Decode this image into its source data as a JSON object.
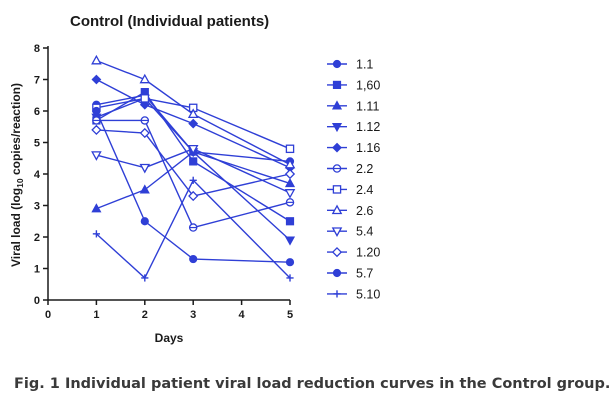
{
  "caption": "Fig. 1 Individual patient viral load reduction curves in the Control group.",
  "colors": {
    "series": "#2f3fd6",
    "axis": "#1a1a1a"
  },
  "chart_data": {
    "type": "line",
    "title": "Control (Individual patients)",
    "xlabel": "Days",
    "ylabel_main": "Viral load (log",
    "ylabel_sub": "10",
    "ylabel_tail": " copies/reaction)",
    "xlim": [
      0,
      5
    ],
    "ylim": [
      0,
      8
    ],
    "x_ticks": [
      0,
      1,
      2,
      3,
      4,
      5
    ],
    "y_ticks": [
      0,
      1,
      2,
      3,
      4,
      5,
      6,
      7,
      8
    ],
    "grid": false,
    "legend_position": "right",
    "series": [
      {
        "name": "1.1",
        "marker": "circle-filled",
        "points": [
          [
            1,
            6.2
          ],
          [
            2,
            6.5
          ],
          [
            3,
            4.7
          ],
          [
            5,
            4.4
          ]
        ]
      },
      {
        "name": "1,60",
        "marker": "square-filled",
        "points": [
          [
            1,
            5.7
          ],
          [
            2,
            6.6
          ],
          [
            3,
            4.4
          ],
          [
            5,
            2.5
          ]
        ]
      },
      {
        "name": "1.11",
        "marker": "triangle-up-filled",
        "points": [
          [
            1,
            2.9
          ],
          [
            2,
            3.5
          ],
          [
            3,
            4.7
          ],
          [
            5,
            3.7
          ]
        ]
      },
      {
        "name": "1.12",
        "marker": "triangle-down-filled",
        "points": [
          [
            1,
            5.8
          ],
          [
            2,
            6.4
          ],
          [
            3,
            4.7
          ],
          [
            5,
            1.9
          ]
        ]
      },
      {
        "name": "1.16",
        "marker": "diamond-filled",
        "points": [
          [
            1,
            7.0
          ],
          [
            2,
            6.2
          ],
          [
            3,
            5.6
          ],
          [
            5,
            4.2
          ]
        ]
      },
      {
        "name": "2.2",
        "marker": "circle-open-bar",
        "points": [
          [
            1,
            5.7
          ],
          [
            2,
            5.7
          ],
          [
            3,
            2.3
          ],
          [
            5,
            3.1
          ]
        ]
      },
      {
        "name": "2.4",
        "marker": "square-open",
        "points": [
          [
            1,
            6.1
          ],
          [
            2,
            6.4
          ],
          [
            3,
            6.1
          ],
          [
            5,
            4.8
          ]
        ]
      },
      {
        "name": "2.6",
        "marker": "triangle-up-open",
        "points": [
          [
            1,
            7.6
          ],
          [
            2,
            7.0
          ],
          [
            3,
            5.9
          ],
          [
            5,
            4.3
          ]
        ]
      },
      {
        "name": "5.4",
        "marker": "triangle-down-open",
        "points": [
          [
            1,
            4.6
          ],
          [
            2,
            4.2
          ],
          [
            3,
            4.8
          ],
          [
            5,
            3.4
          ]
        ]
      },
      {
        "name": "1.20",
        "marker": "diamond-open",
        "points": [
          [
            1,
            5.4
          ],
          [
            2,
            5.3
          ],
          [
            3,
            3.3
          ],
          [
            5,
            4.0
          ]
        ]
      },
      {
        "name": "5.7",
        "marker": "circle-filled",
        "points": [
          [
            1,
            6.0
          ],
          [
            2,
            2.5
          ],
          [
            3,
            1.3
          ],
          [
            5,
            1.2
          ]
        ]
      },
      {
        "name": "5.10",
        "marker": "plus",
        "points": [
          [
            1,
            2.1
          ],
          [
            2,
            0.7
          ],
          [
            3,
            3.8
          ],
          [
            5,
            0.7
          ]
        ]
      }
    ]
  }
}
